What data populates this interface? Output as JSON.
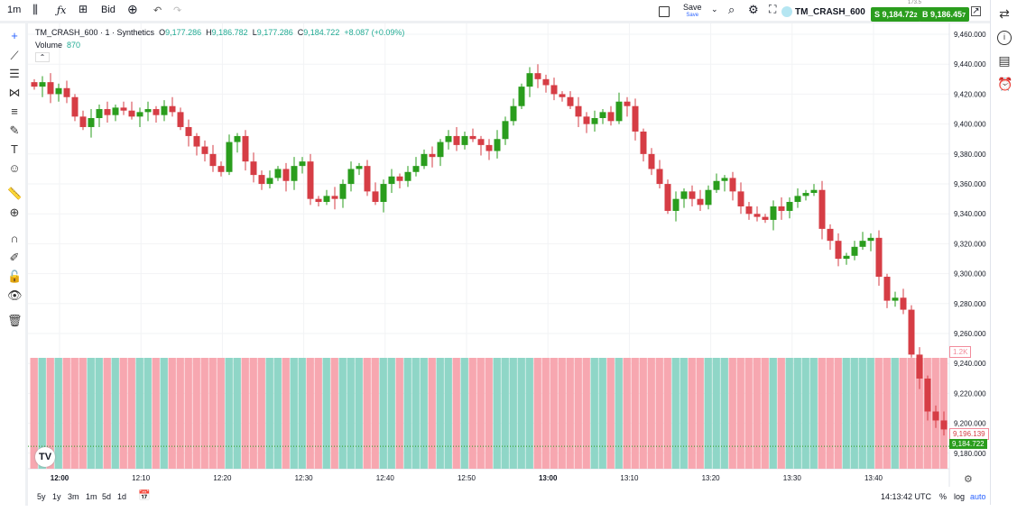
{
  "toolbar": {
    "interval": "1m",
    "indicators_icon": "fx-icon",
    "price_type": "Bid",
    "save_label": "Save",
    "save_sublabel": "Save",
    "symbol": "TM_CRASH_600",
    "sell_label": "S",
    "sell_price": "9,184.72",
    "sell_price_small": "2",
    "buy_label": "B",
    "buy_price": "9,186.45",
    "buy_price_small": "7",
    "spread": "173.5"
  },
  "legend": {
    "title": "TM_CRASH_600 · 1 · Synthetics",
    "o_label": "O",
    "o": "9,177.286",
    "h_label": "H",
    "h": "9,186.782",
    "l_label": "L",
    "l": "9,177.286",
    "c_label": "C",
    "c": "9,184.722",
    "change": "+8.087 (+0.09%)",
    "volume_label": "Volume",
    "volume": "870"
  },
  "price_axis": {
    "ticks": [
      "9,460.000",
      "9,440.000",
      "9,420.000",
      "9,400.000",
      "9,380.000",
      "9,360.000",
      "9,340.000",
      "9,320.000",
      "9,300.000",
      "9,280.000",
      "9,260.000",
      "9,240.000",
      "9,220.000",
      "9,200.000",
      "9,180.000"
    ],
    "volume_label": "1.2K",
    "prev_price": "9,196.139",
    "last_price": "9,184.722"
  },
  "time_axis": {
    "ticks": [
      "12:00",
      "12:10",
      "12:20",
      "12:30",
      "12:40",
      "12:50",
      "13:00",
      "13:10",
      "13:20",
      "13:30",
      "13:40"
    ]
  },
  "bottom": {
    "ranges": [
      "5y",
      "1y",
      "3m",
      "1m",
      "5d",
      "1d"
    ],
    "clock": "14:13:42 UTC",
    "percent": "%",
    "log": "log",
    "auto": "auto"
  },
  "colors": {
    "up": "#2a9d1d",
    "down": "#d63d45",
    "vol_up": "#8fd6c7",
    "vol_down": "#f7a7b0",
    "accent": "#2962ff"
  },
  "chart_data": {
    "type": "candlestick",
    "ylim": [
      9170,
      9465
    ],
    "start_time": "11:57",
    "interval_minutes": 1,
    "closes": [
      9425,
      9428,
      9420,
      9424,
      9418,
      9405,
      9398,
      9404,
      9410,
      9406,
      9411,
      9409,
      9405,
      9408,
      9410,
      9406,
      9412,
      9408,
      9398,
      9392,
      9385,
      9380,
      9372,
      9368,
      9388,
      9392,
      9375,
      9366,
      9360,
      9364,
      9370,
      9362,
      9372,
      9375,
      9350,
      9348,
      9352,
      9350,
      9360,
      9370,
      9372,
      9355,
      9348,
      9360,
      9365,
      9362,
      9368,
      9372,
      9380,
      9378,
      9388,
      9392,
      9386,
      9392,
      9390,
      9386,
      9382,
      9390,
      9402,
      9412,
      9425,
      9434,
      9430,
      9426,
      9420,
      9418,
      9412,
      9405,
      9400,
      9404,
      9408,
      9402,
      9415,
      9412,
      9395,
      9380,
      9370,
      9360,
      9342,
      9350,
      9355,
      9350,
      9346,
      9356,
      9362,
      9364,
      9355,
      9345,
      9340,
      9338,
      9336,
      9345,
      9342,
      9348,
      9352,
      9354,
      9356,
      9330,
      9322,
      9310,
      9312,
      9318,
      9322,
      9324,
      9298,
      9282,
      9284,
      9276,
      9246,
      9230,
      9208,
      9202,
      9196
    ]
  }
}
